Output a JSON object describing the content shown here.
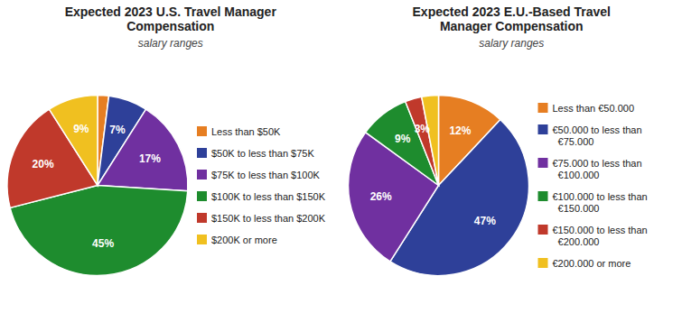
{
  "chart_data": [
    {
      "type": "pie",
      "title": "Expected 2023 U.S. Travel Manager\nCompensation",
      "subtitle": "salary ranges",
      "categories": [
        "Less than $50K",
        "$50K to less than $75K",
        "$75K to less than $100K",
        "$100K to less than $150K",
        "$150K to less than $200K",
        "$200K or more"
      ],
      "values": [
        2,
        7,
        17,
        45,
        20,
        9
      ],
      "value_labels": [
        null,
        "7%",
        "17%",
        "45%",
        "20%",
        "9%"
      ],
      "colors": [
        "#e67e22",
        "#2e4099",
        "#7030a0",
        "#1e8c2e",
        "#c0392b",
        "#f0c020"
      ],
      "data_labels": true,
      "legend": "right"
    },
    {
      "type": "pie",
      "title": "Expected 2023 E.U.-Based Travel\nManager Compensation",
      "subtitle": "salary ranges",
      "categories": [
        "Less than €50.000",
        "€50.000 to less than\n  €75.000",
        "€75.000 to less than\n  €100.000",
        "€100.000 to less than\n  €150.000",
        "€150.000 to less than\n  €200.000",
        "€200.000 or more"
      ],
      "values": [
        12,
        47,
        26,
        9,
        3,
        3
      ],
      "value_labels": [
        "12%",
        "47%",
        "26%",
        "9%",
        "3%",
        null
      ],
      "colors": [
        "#e67e22",
        "#2e4099",
        "#7030a0",
        "#1e8c2e",
        "#c0392b",
        "#f0c020"
      ],
      "data_labels": true,
      "legend": "right"
    }
  ]
}
